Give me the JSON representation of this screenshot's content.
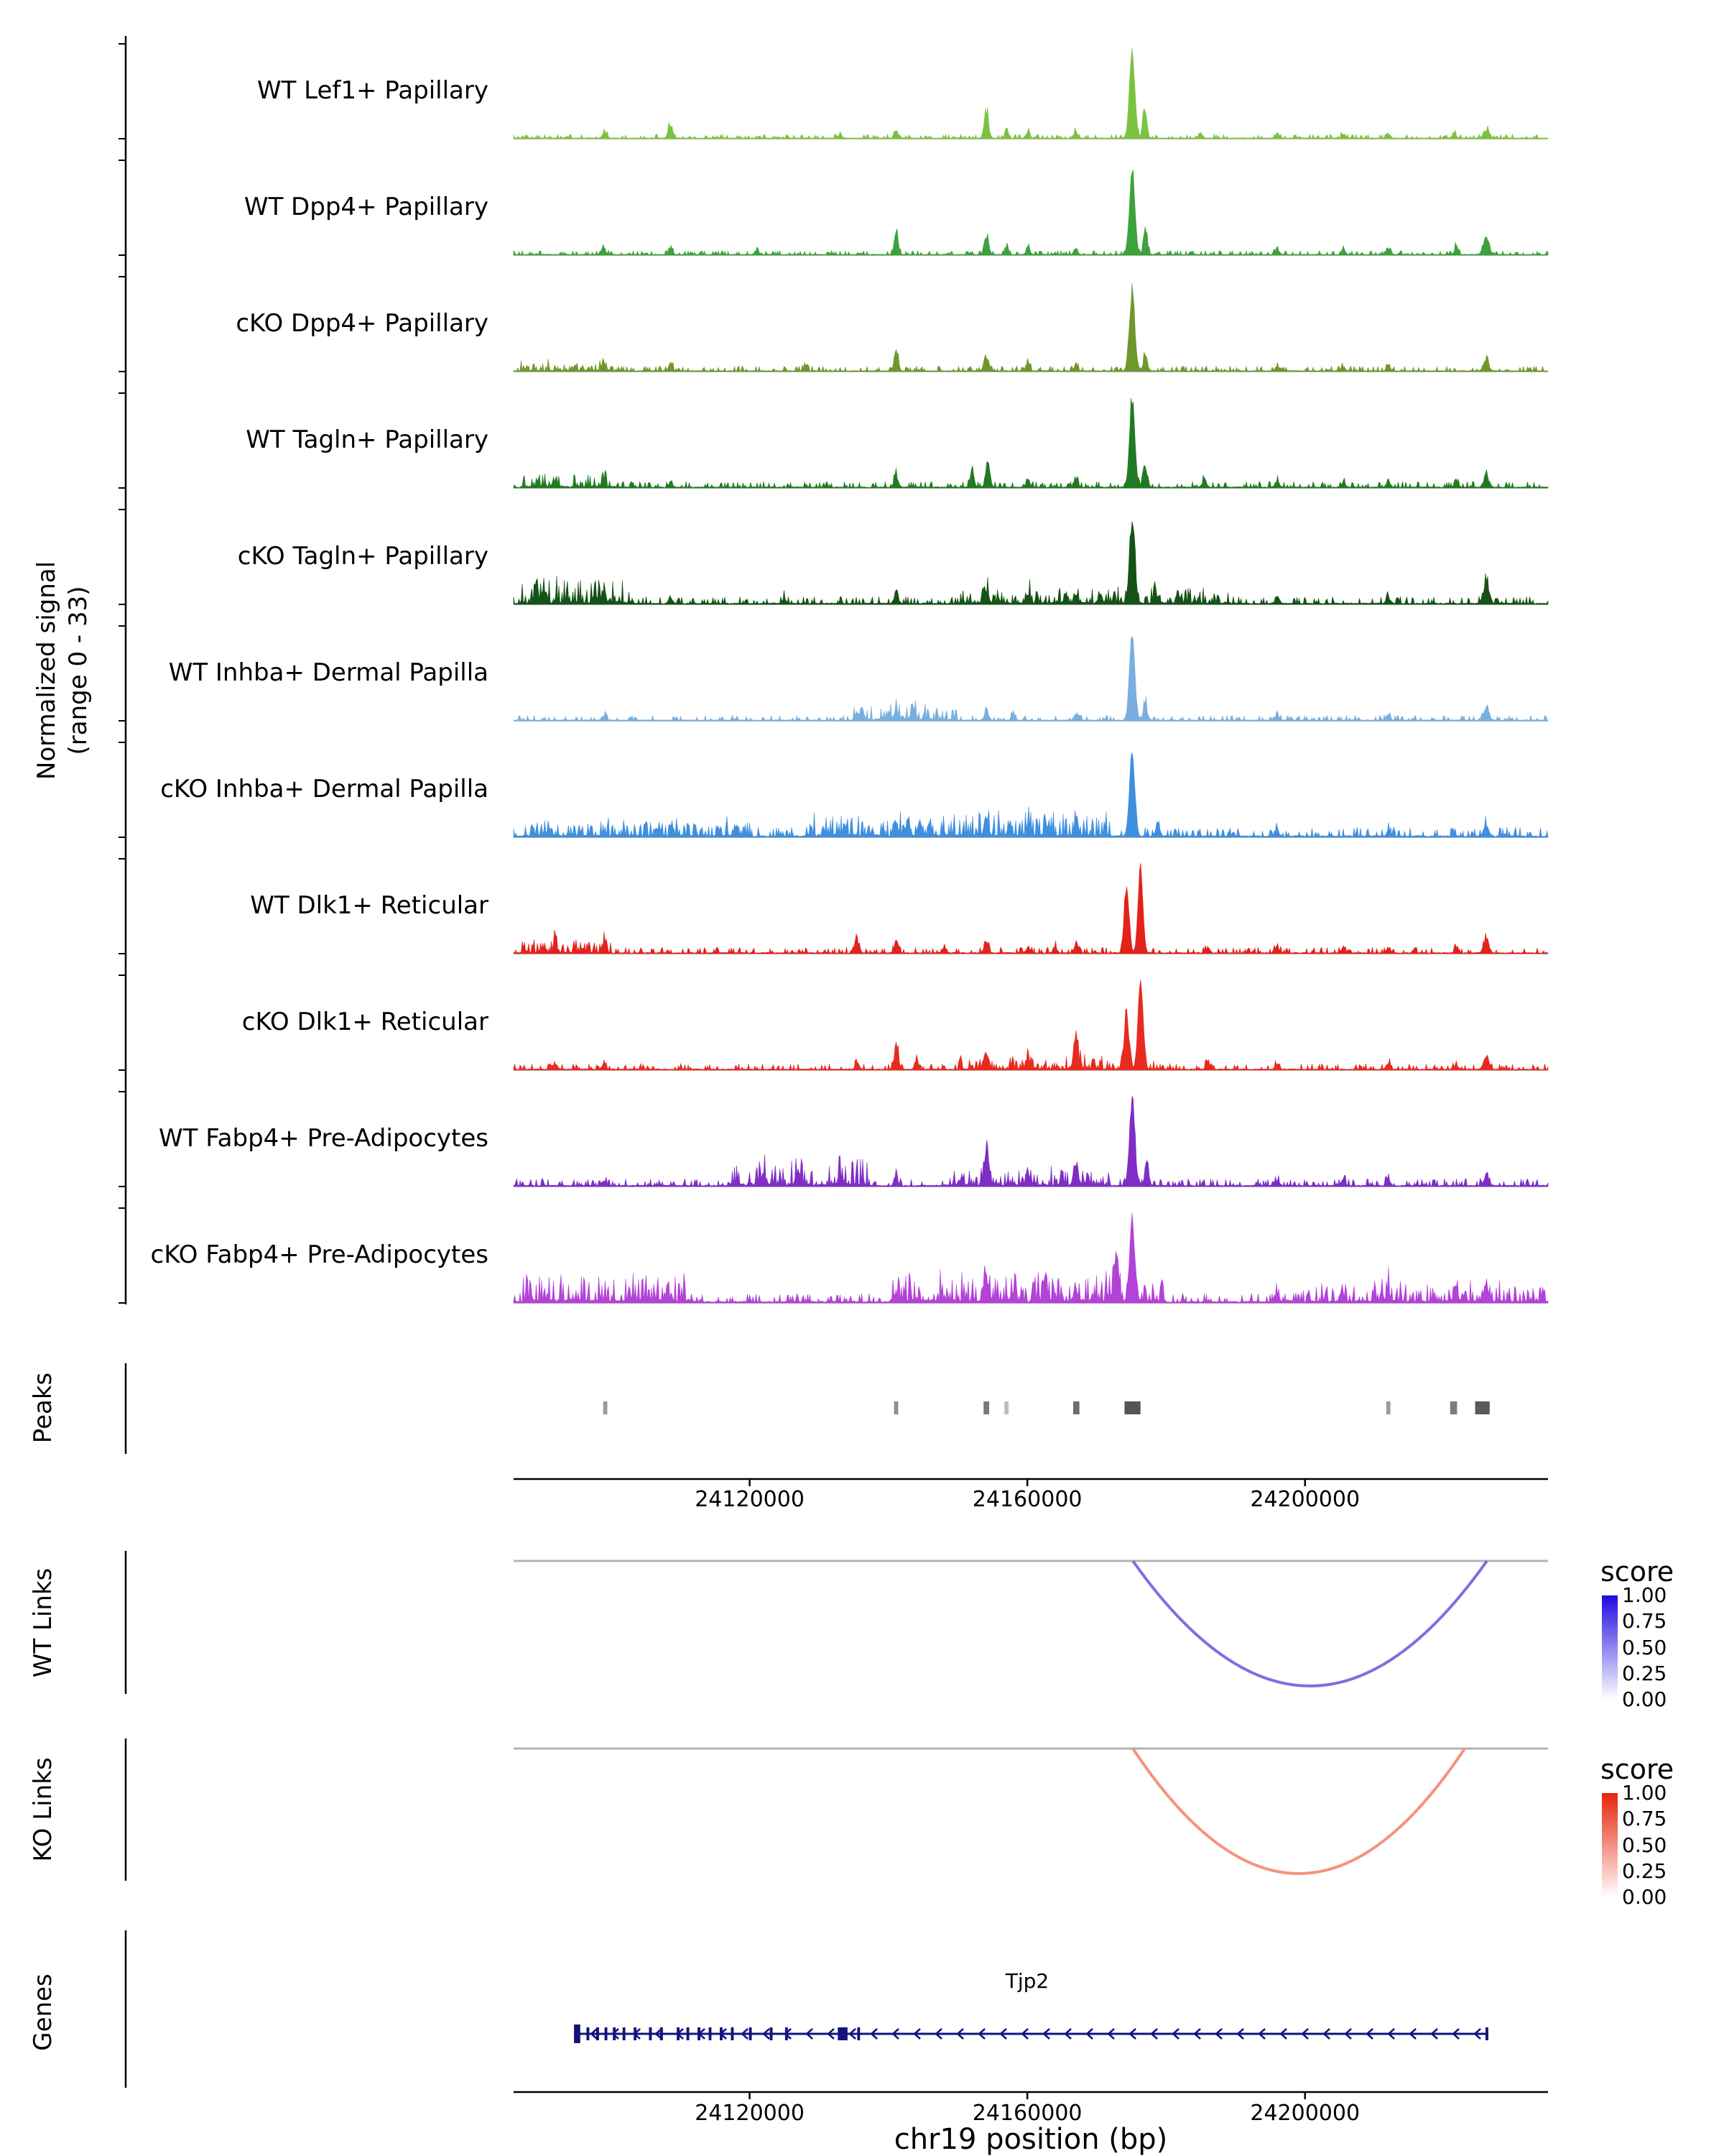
{
  "figure": {
    "ylabel_line1": "Normalized signal",
    "ylabel_line2": "(range 0 - 33)",
    "xlabel": "chr19 position (bp)",
    "x_tick_labels": [
      "24120000",
      "24160000",
      "24200000"
    ],
    "sections": {
      "peaks_label": "Peaks",
      "wt_links_label": "WT Links",
      "ko_links_label": "KO Links",
      "genes_label": "Genes"
    },
    "legend": {
      "title": "score",
      "tick_labels": [
        "1.00",
        "0.75",
        "0.50",
        "0.25",
        "0.00"
      ],
      "wt_top_color": "#1F0AE0",
      "ko_top_color": "#E8220A",
      "bottom_color": "#FFFFFF"
    }
  },
  "chart_data": {
    "type": "area",
    "region": {
      "chrom": "chr19",
      "xmin": 24086000,
      "xmax": 24235000
    },
    "x_ticks": [
      24120000,
      24160000,
      24200000
    ],
    "y_range": [
      0,
      33
    ],
    "tracks": [
      {
        "name": "WT Lef1+ Papillary",
        "color": "#7CC241",
        "seed": 101,
        "noise": 0.012,
        "bands": [],
        "peaks": [
          [
            24099100,
            0.07,
            300
          ],
          [
            24108600,
            0.16,
            300
          ],
          [
            24133000,
            0.05,
            260
          ],
          [
            24141100,
            0.1,
            260
          ],
          [
            24154100,
            0.32,
            300
          ],
          [
            24157000,
            0.1,
            250
          ],
          [
            24160100,
            0.08,
            250
          ],
          [
            24167000,
            0.07,
            250
          ],
          [
            24175100,
            1.0,
            380
          ],
          [
            24176900,
            0.38,
            280
          ],
          [
            24185000,
            0.05,
            300
          ],
          [
            24196000,
            0.05,
            300
          ],
          [
            24205500,
            0.05,
            280
          ],
          [
            24212000,
            0.06,
            260
          ],
          [
            24221500,
            0.06,
            260
          ],
          [
            24226100,
            0.12,
            360
          ]
        ]
      },
      {
        "name": "WT Dpp4+ Papillary",
        "color": "#3DA23B",
        "seed": 202,
        "noise": 0.012,
        "bands": [],
        "peaks": [
          [
            24098900,
            0.1,
            300
          ],
          [
            24108600,
            0.08,
            260
          ],
          [
            24121000,
            0.05,
            260
          ],
          [
            24141100,
            0.26,
            280
          ],
          [
            24154100,
            0.24,
            300
          ],
          [
            24157000,
            0.1,
            250
          ],
          [
            24160100,
            0.1,
            250
          ],
          [
            24167000,
            0.08,
            250
          ],
          [
            24175100,
            1.0,
            380
          ],
          [
            24177000,
            0.3,
            280
          ],
          [
            24196000,
            0.07,
            300
          ],
          [
            24205500,
            0.06,
            280
          ],
          [
            24212000,
            0.08,
            260
          ],
          [
            24221800,
            0.1,
            260
          ],
          [
            24226100,
            0.2,
            400
          ]
        ]
      },
      {
        "name": "cKO Dpp4+ Papillary",
        "color": "#6F972C",
        "seed": 303,
        "noise": 0.015,
        "bands": [
          [
            24087000,
            24100000,
            0.03
          ]
        ],
        "peaks": [
          [
            24098900,
            0.1,
            300
          ],
          [
            24108600,
            0.1,
            260
          ],
          [
            24128000,
            0.05,
            260
          ],
          [
            24141100,
            0.22,
            280
          ],
          [
            24154100,
            0.2,
            300
          ],
          [
            24160100,
            0.12,
            260
          ],
          [
            24167000,
            0.08,
            260
          ],
          [
            24175100,
            0.92,
            380
          ],
          [
            24177000,
            0.22,
            280
          ],
          [
            24196000,
            0.06,
            300
          ],
          [
            24205500,
            0.05,
            280
          ],
          [
            24212000,
            0.07,
            260
          ],
          [
            24226100,
            0.13,
            360
          ]
        ]
      },
      {
        "name": "WT Tagln+ Papillary",
        "color": "#217A21",
        "seed": 404,
        "noise": 0.018,
        "bands": [
          [
            24087000,
            24101000,
            0.05
          ]
        ],
        "peaks": [
          [
            24092000,
            0.07,
            300
          ],
          [
            24099000,
            0.08,
            280
          ],
          [
            24108600,
            0.07,
            260
          ],
          [
            24141100,
            0.14,
            280
          ],
          [
            24152000,
            0.18,
            280
          ],
          [
            24154300,
            0.26,
            300
          ],
          [
            24160100,
            0.1,
            260
          ],
          [
            24167000,
            0.1,
            260
          ],
          [
            24175100,
            1.0,
            380
          ],
          [
            24177000,
            0.28,
            280
          ],
          [
            24185500,
            0.09,
            280
          ],
          [
            24196000,
            0.07,
            280
          ],
          [
            24205500,
            0.06,
            280
          ],
          [
            24212000,
            0.09,
            260
          ],
          [
            24221800,
            0.08,
            260
          ],
          [
            24226100,
            0.13,
            360
          ]
        ]
      },
      {
        "name": "cKO Tagln+ Papillary",
        "color": "#155215",
        "seed": 505,
        "noise": 0.022,
        "bands": [
          [
            24087000,
            24103000,
            0.09
          ],
          [
            24150000,
            24190000,
            0.05
          ]
        ],
        "peaks": [
          [
            24090500,
            0.13,
            300
          ],
          [
            24099000,
            0.13,
            280
          ],
          [
            24108600,
            0.08,
            260
          ],
          [
            24125000,
            0.06,
            260
          ],
          [
            24141100,
            0.14,
            280
          ],
          [
            24154100,
            0.16,
            280
          ],
          [
            24160100,
            0.12,
            260
          ],
          [
            24167000,
            0.12,
            260
          ],
          [
            24170500,
            0.1,
            260
          ],
          [
            24175100,
            0.95,
            380
          ],
          [
            24178500,
            0.14,
            280
          ],
          [
            24196000,
            0.07,
            280
          ],
          [
            24212000,
            0.08,
            260
          ],
          [
            24226100,
            0.3,
            380
          ]
        ]
      },
      {
        "name": "WT Inhba+ Dermal Papilla",
        "color": "#79AFDE",
        "seed": 606,
        "noise": 0.015,
        "bands": [
          [
            24135000,
            24150000,
            0.05
          ]
        ],
        "peaks": [
          [
            24099000,
            0.06,
            280
          ],
          [
            24135500,
            0.08,
            260
          ],
          [
            24141100,
            0.13,
            270
          ],
          [
            24143500,
            0.14,
            270
          ],
          [
            24154100,
            0.13,
            280
          ],
          [
            24158000,
            0.08,
            260
          ],
          [
            24167000,
            0.07,
            260
          ],
          [
            24175100,
            1.0,
            380
          ],
          [
            24177000,
            0.2,
            280
          ],
          [
            24196000,
            0.05,
            280
          ],
          [
            24212000,
            0.06,
            260
          ],
          [
            24226100,
            0.16,
            360
          ]
        ]
      },
      {
        "name": "cKO Inhba+ Dermal Papilla",
        "color": "#3F8FDE",
        "seed": 707,
        "noise": 0.028,
        "bands": [
          [
            24087000,
            24120000,
            0.05
          ],
          [
            24128000,
            24172000,
            0.08
          ]
        ],
        "peaks": [
          [
            24141100,
            0.15,
            270
          ],
          [
            24144500,
            0.16,
            270
          ],
          [
            24154100,
            0.2,
            280
          ],
          [
            24157500,
            0.14,
            260
          ],
          [
            24160100,
            0.14,
            260
          ],
          [
            24163000,
            0.1,
            260
          ],
          [
            24167000,
            0.1,
            260
          ],
          [
            24175100,
            0.95,
            380
          ],
          [
            24178800,
            0.18,
            280
          ],
          [
            24196000,
            0.06,
            280
          ],
          [
            24212000,
            0.06,
            260
          ],
          [
            24226100,
            0.12,
            360
          ]
        ]
      },
      {
        "name": "WT Dlk1+ Reticular",
        "color": "#E3221B",
        "seed": 808,
        "noise": 0.018,
        "bands": [
          [
            24087000,
            24100000,
            0.05
          ]
        ],
        "peaks": [
          [
            24092000,
            0.08,
            280
          ],
          [
            24099000,
            0.08,
            280
          ],
          [
            24135500,
            0.16,
            280
          ],
          [
            24141100,
            0.13,
            270
          ],
          [
            24148000,
            0.06,
            260
          ],
          [
            24154100,
            0.15,
            280
          ],
          [
            24160100,
            0.08,
            260
          ],
          [
            24164000,
            0.08,
            260
          ],
          [
            24167000,
            0.12,
            260
          ],
          [
            24174300,
            0.8,
            340
          ],
          [
            24176300,
            1.0,
            340
          ],
          [
            24186000,
            0.06,
            280
          ],
          [
            24196000,
            0.07,
            280
          ],
          [
            24205500,
            0.07,
            280
          ],
          [
            24212000,
            0.07,
            260
          ],
          [
            24221800,
            0.07,
            260
          ],
          [
            24226100,
            0.15,
            360
          ]
        ]
      },
      {
        "name": "cKO Dlk1+ Reticular",
        "color": "#E82A20",
        "seed": 909,
        "noise": 0.018,
        "bands": [
          [
            24150000,
            24180000,
            0.04
          ]
        ],
        "peaks": [
          [
            24092000,
            0.06,
            280
          ],
          [
            24099000,
            0.06,
            280
          ],
          [
            24135500,
            0.08,
            280
          ],
          [
            24141100,
            0.3,
            280
          ],
          [
            24144000,
            0.1,
            260
          ],
          [
            24154100,
            0.22,
            280
          ],
          [
            24160100,
            0.1,
            260
          ],
          [
            24167000,
            0.42,
            300
          ],
          [
            24174300,
            0.62,
            320
          ],
          [
            24176300,
            1.0,
            360
          ],
          [
            24186000,
            0.07,
            280
          ],
          [
            24196000,
            0.06,
            280
          ],
          [
            24212000,
            0.08,
            260
          ],
          [
            24221800,
            0.06,
            260
          ],
          [
            24226100,
            0.14,
            360
          ]
        ]
      },
      {
        "name": "WT Fabp4+ Pre-Adipocytes",
        "color": "#7F2DC6",
        "seed": 1010,
        "noise": 0.022,
        "bands": [
          [
            24117000,
            24137000,
            0.1
          ],
          [
            24148000,
            24172000,
            0.06
          ]
        ],
        "peaks": [
          [
            24099000,
            0.06,
            280
          ],
          [
            24122000,
            0.12,
            280
          ],
          [
            24127000,
            0.12,
            280
          ],
          [
            24133000,
            0.1,
            280
          ],
          [
            24141100,
            0.12,
            270
          ],
          [
            24154100,
            0.4,
            320
          ],
          [
            24160100,
            0.12,
            260
          ],
          [
            24167000,
            0.3,
            300
          ],
          [
            24175100,
            1.0,
            380
          ],
          [
            24177200,
            0.28,
            280
          ],
          [
            24196000,
            0.06,
            280
          ],
          [
            24205500,
            0.07,
            280
          ],
          [
            24212000,
            0.08,
            260
          ],
          [
            24226100,
            0.13,
            360
          ]
        ]
      },
      {
        "name": "cKO Fabp4+ Pre-Adipocytes",
        "color": "#B342D8",
        "seed": 1111,
        "noise": 0.028,
        "bands": [
          [
            24087000,
            24112000,
            0.1
          ],
          [
            24140000,
            24180000,
            0.1
          ],
          [
            24195000,
            24235000,
            0.06
          ]
        ],
        "peaks": [
          [
            24108000,
            0.07,
            280
          ],
          [
            24141100,
            0.1,
            270
          ],
          [
            24154100,
            0.28,
            320
          ],
          [
            24158000,
            0.12,
            260
          ],
          [
            24167000,
            0.16,
            280
          ],
          [
            24172800,
            0.55,
            320
          ],
          [
            24175100,
            0.9,
            380
          ],
          [
            24196000,
            0.08,
            280
          ],
          [
            24205500,
            0.08,
            280
          ],
          [
            24212000,
            0.12,
            280
          ],
          [
            24221800,
            0.1,
            260
          ],
          [
            24226100,
            0.13,
            360
          ]
        ]
      }
    ],
    "peaks_track": {
      "intervals": [
        [
          24098900,
          24099500,
          "#9b9b9b"
        ],
        [
          24140800,
          24141400,
          "#8f8f8f"
        ],
        [
          24153700,
          24154500,
          "#787878"
        ],
        [
          24156700,
          24157300,
          "#bdbdbd"
        ],
        [
          24166600,
          24167500,
          "#6e6e6e"
        ],
        [
          24174000,
          24176300,
          "#555555"
        ],
        [
          24211700,
          24212300,
          "#9b9b9b"
        ],
        [
          24220900,
          24221900,
          "#7d7d7d"
        ],
        [
          24224500,
          24226600,
          "#5a5a5a"
        ]
      ]
    },
    "links": {
      "wt": {
        "arcs": [
          {
            "start": 24175200,
            "end": 24226200,
            "score": 0.55,
            "color": "#7F6FE0"
          }
        ]
      },
      "ko": {
        "arcs": [
          {
            "start": 24175200,
            "end": 24223000,
            "score": 0.35,
            "color": "#F5937B"
          }
        ]
      }
    },
    "genes": {
      "items": [
        {
          "name": "Tjp2",
          "start": 24094700,
          "end": 24226400,
          "strand": "-",
          "color": "#13137E",
          "exons": [
            [
              24094700,
              24095600
            ],
            [
              24096500,
              24096900
            ],
            [
              24097900,
              24098300
            ],
            [
              24099100,
              24099500
            ],
            [
              24100300,
              24100700
            ],
            [
              24101700,
              24102100
            ],
            [
              24103300,
              24103700
            ],
            [
              24105500,
              24105900
            ],
            [
              24107100,
              24107500
            ],
            [
              24109500,
              24109900
            ],
            [
              24110900,
              24111300
            ],
            [
              24112500,
              24112900
            ],
            [
              24114100,
              24114500
            ],
            [
              24115700,
              24116100
            ],
            [
              24117300,
              24117700
            ],
            [
              24119900,
              24120300
            ],
            [
              24122900,
              24123300
            ],
            [
              24125100,
              24125500
            ],
            [
              24132700,
              24134100
            ],
            [
              24135500,
              24135900
            ],
            [
              24226000,
              24226400
            ]
          ]
        }
      ]
    }
  }
}
